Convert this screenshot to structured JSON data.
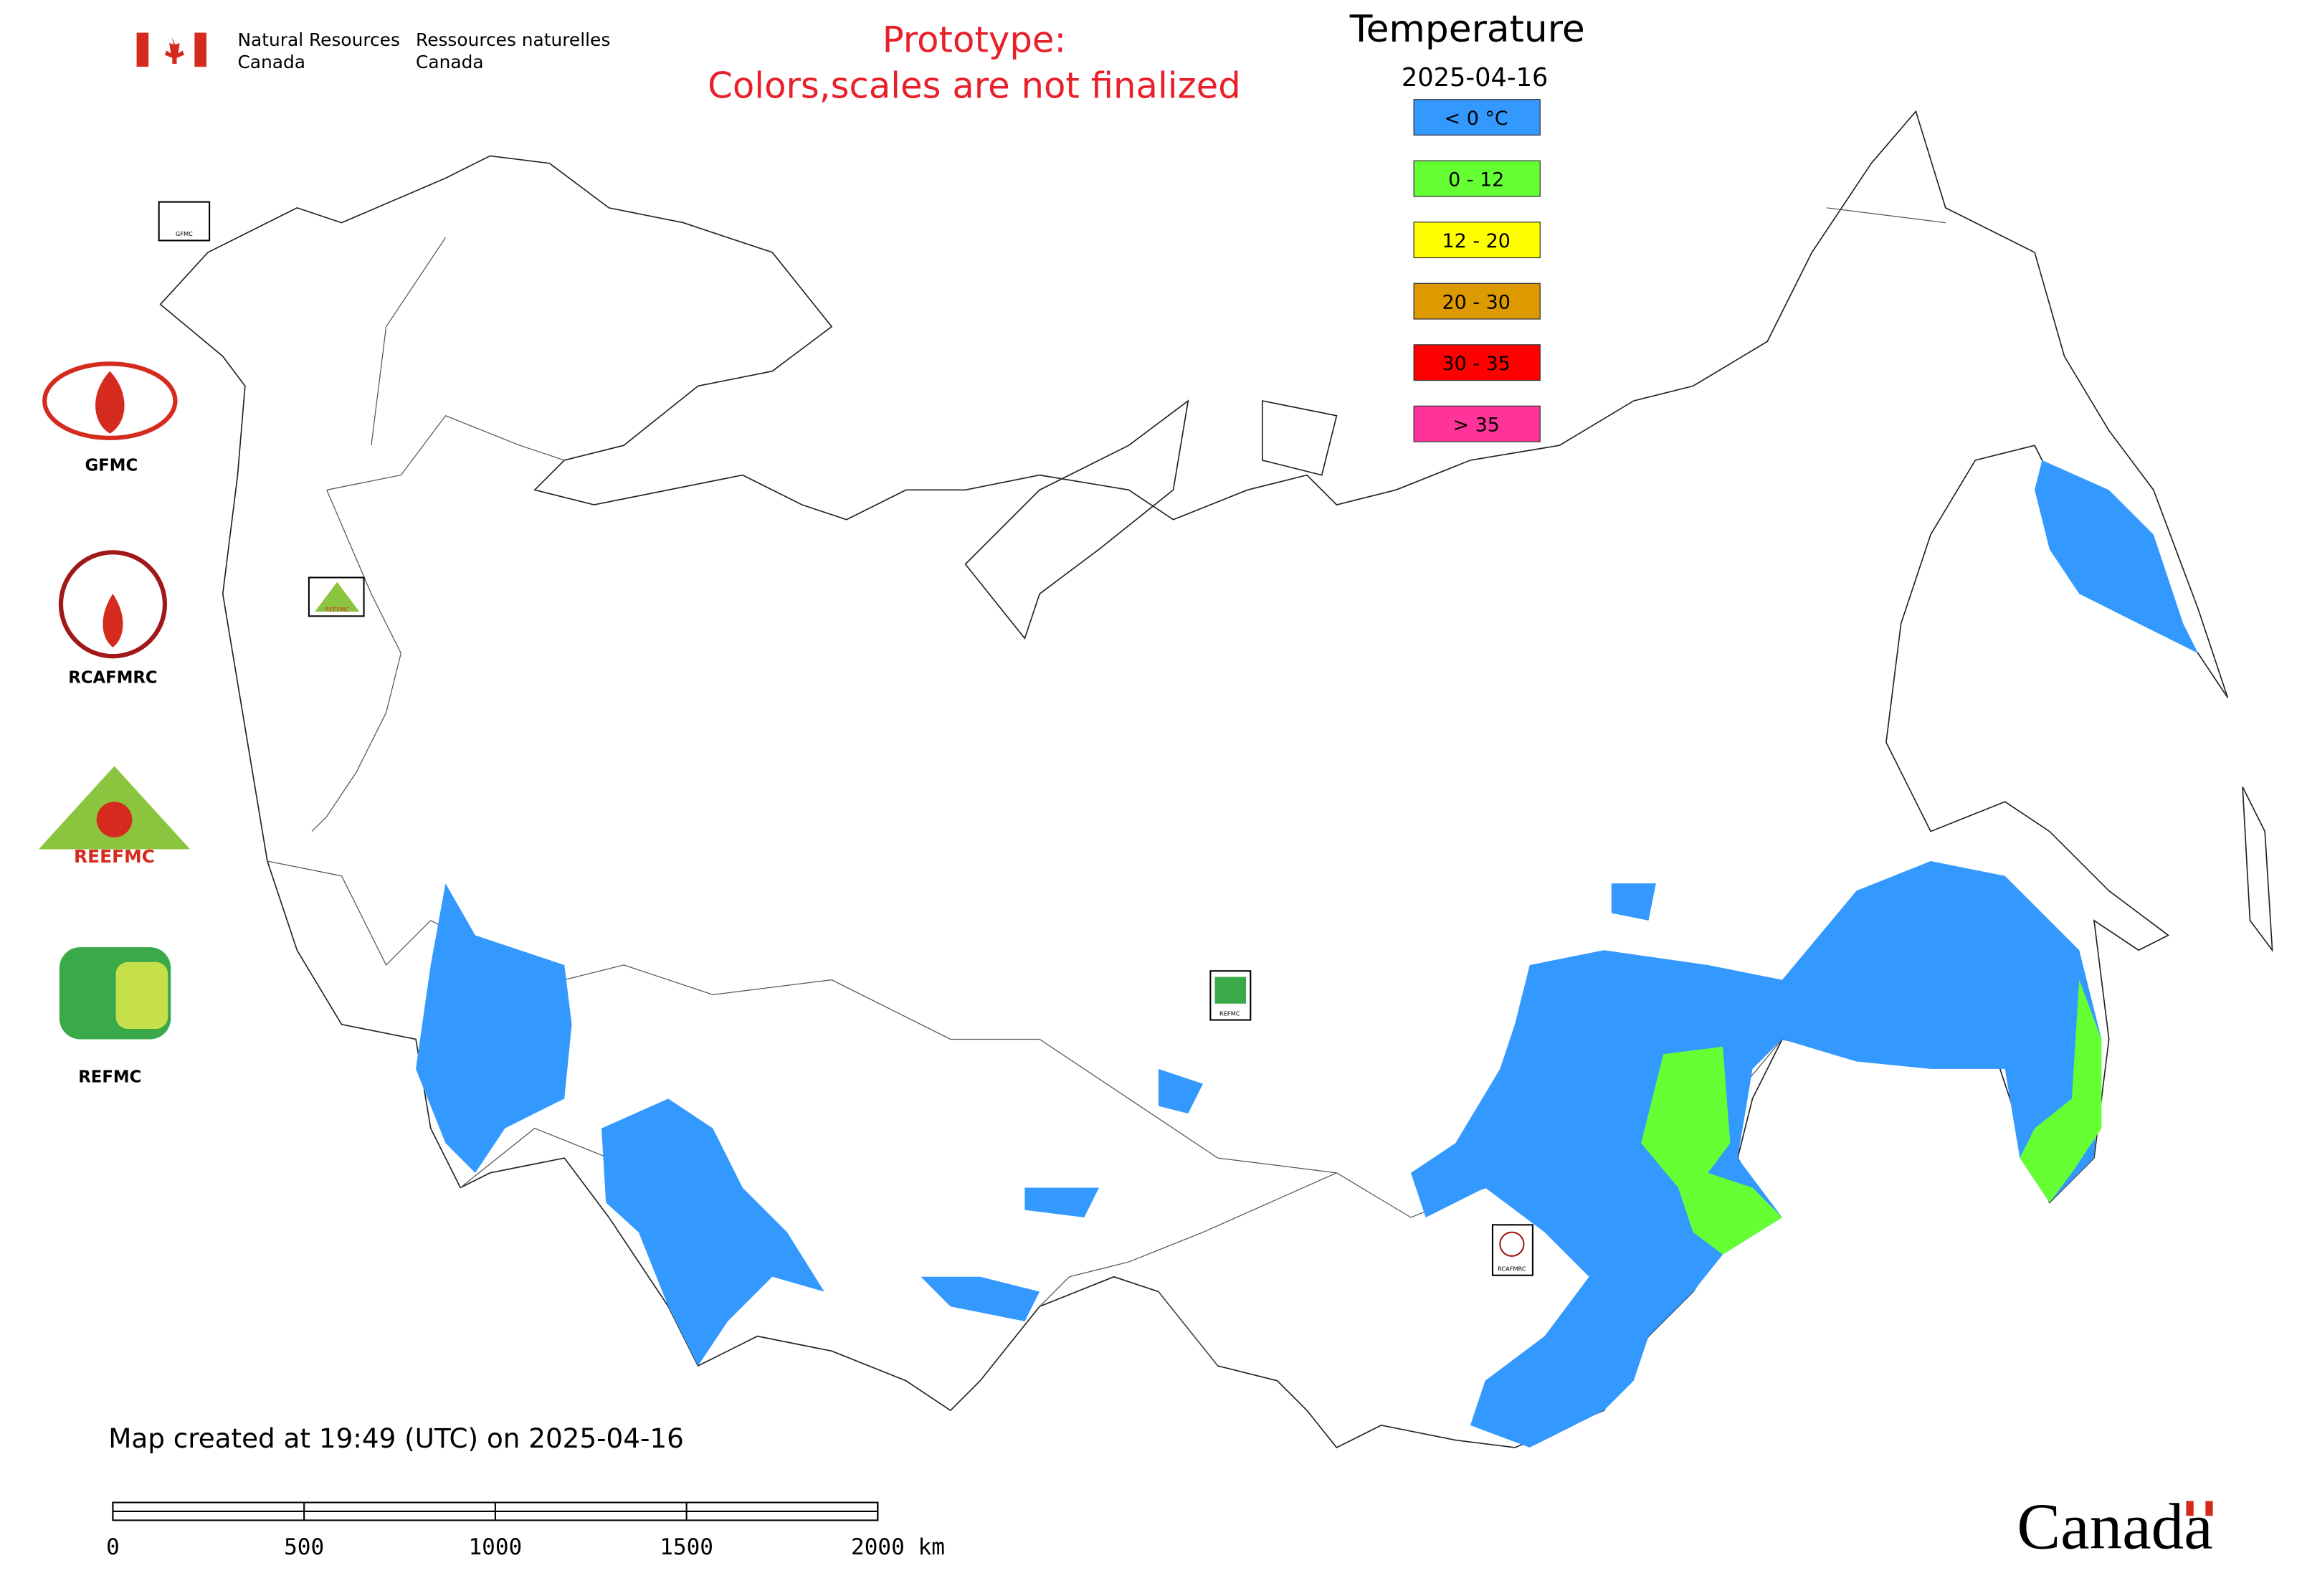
{
  "header": {
    "org_en": [
      "Natural Resources",
      "Canada"
    ],
    "org_fr": [
      "Ressources naturelles",
      "Canada"
    ],
    "notice": [
      "Prototype:",
      "Colors,scales are not finalized"
    ]
  },
  "legend": {
    "title": "Temperature",
    "date": "2025-04-16",
    "items": [
      {
        "label": "< 0 °C",
        "color": "#3399ff"
      },
      {
        "label": "0 - 12",
        "color": "#66ff33"
      },
      {
        "label": "12 - 20",
        "color": "#ffff00"
      },
      {
        "label": "20 - 30",
        "color": "#dd9900"
      },
      {
        "label": "30 - 35",
        "color": "#ff0000"
      },
      {
        "label": "> 35",
        "color": "#ff3399"
      }
    ]
  },
  "logos": [
    "GFMC",
    "RCAFMRC",
    "REEFMC",
    "REFMC"
  ],
  "map_markers": [
    "GFMC",
    "REEFMC",
    "REFMC",
    "RCAFMRC"
  ],
  "footer": {
    "created": "Map created at 19:49 (UTC) on 2025-04-16",
    "wordmark": "Canada"
  },
  "scale_bar": {
    "labels": [
      "0",
      "500",
      "1000",
      "1500",
      "2000 km"
    ]
  }
}
